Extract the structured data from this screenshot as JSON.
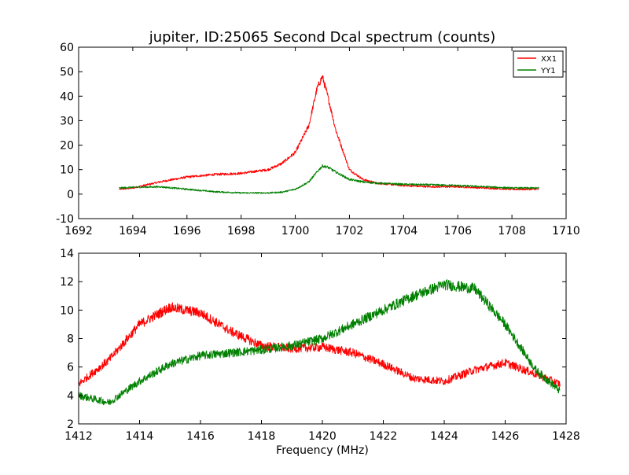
{
  "figure": {
    "title": "jupiter, ID:25065 Second Dcal spectrum (counts)",
    "xlabel": "Frequency (MHz)"
  },
  "colors": {
    "XX1": "#ff0000",
    "YY1": "#008000",
    "axes": "#000000",
    "background": "#ffffff"
  },
  "chart_data": [
    {
      "type": "line",
      "title": "jupiter, ID:25065 Second Dcal spectrum (counts)",
      "xlabel": "",
      "ylabel": "",
      "xlim": [
        1692,
        1710
      ],
      "ylim": [
        -10,
        60
      ],
      "xticks": [
        1692,
        1694,
        1696,
        1698,
        1700,
        1702,
        1704,
        1706,
        1708,
        1710
      ],
      "yticks": [
        -10,
        0,
        10,
        20,
        30,
        40,
        50,
        60
      ],
      "grid": false,
      "legend": "top-right",
      "noise": 0.8,
      "series": [
        {
          "name": "XX1",
          "color": "#ff0000",
          "x": [
            1693.5,
            1694,
            1695,
            1696,
            1697,
            1698,
            1699,
            1699.5,
            1700,
            1700.5,
            1700.8,
            1701,
            1701.2,
            1701.5,
            1702,
            1702.5,
            1703,
            1704,
            1705,
            1706,
            1707,
            1708,
            1709
          ],
          "y": [
            2,
            2.5,
            5,
            7,
            8,
            8.5,
            10,
            12.5,
            17,
            28,
            43,
            48,
            40,
            26,
            10,
            6,
            4.5,
            3.5,
            3,
            3,
            2.5,
            2,
            2
          ]
        },
        {
          "name": "YY1",
          "color": "#008000",
          "x": [
            1693.5,
            1694,
            1695,
            1696,
            1697,
            1698,
            1699,
            1699.5,
            1700,
            1700.5,
            1700.8,
            1701,
            1701.2,
            1701.5,
            1702,
            1702.5,
            1703,
            1704,
            1705,
            1706,
            1707,
            1708,
            1709
          ],
          "y": [
            2.5,
            2.8,
            3,
            2,
            1,
            0.5,
            0.5,
            0.8,
            2,
            5,
            9,
            11.5,
            11,
            9,
            6,
            5,
            4.5,
            4,
            3.8,
            3.5,
            3,
            2.5,
            2.5
          ]
        }
      ]
    },
    {
      "type": "line",
      "title": "",
      "xlabel": "Frequency (MHz)",
      "ylabel": "",
      "xlim": [
        1412,
        1428
      ],
      "ylim": [
        2,
        14
      ],
      "xticks": [
        1412,
        1414,
        1416,
        1418,
        1420,
        1422,
        1424,
        1426,
        1428
      ],
      "yticks": [
        2,
        4,
        6,
        8,
        10,
        12,
        14
      ],
      "grid": false,
      "legend": "none",
      "noise": 0.55,
      "series": [
        {
          "name": "XX1",
          "color": "#ff0000",
          "x": [
            1412,
            1413,
            1414,
            1415,
            1416,
            1417,
            1418,
            1419,
            1420,
            1421,
            1422,
            1423,
            1424,
            1425,
            1426,
            1427,
            1427.8
          ],
          "y": [
            4.8,
            6.5,
            9,
            10.2,
            9.8,
            8.5,
            7.5,
            7.3,
            7.4,
            7,
            6.2,
            5.2,
            5,
            5.8,
            6.3,
            5.5,
            4.8
          ]
        },
        {
          "name": "YY1",
          "color": "#008000",
          "x": [
            1412,
            1413,
            1414,
            1415,
            1416,
            1417,
            1418,
            1419,
            1420,
            1421,
            1422,
            1423,
            1424,
            1425,
            1426,
            1427,
            1427.8
          ],
          "y": [
            4,
            3.5,
            5,
            6.2,
            6.8,
            7,
            7.2,
            7.5,
            8,
            9,
            10,
            11,
            11.8,
            11.5,
            9,
            5.8,
            4.3
          ]
        }
      ]
    }
  ]
}
